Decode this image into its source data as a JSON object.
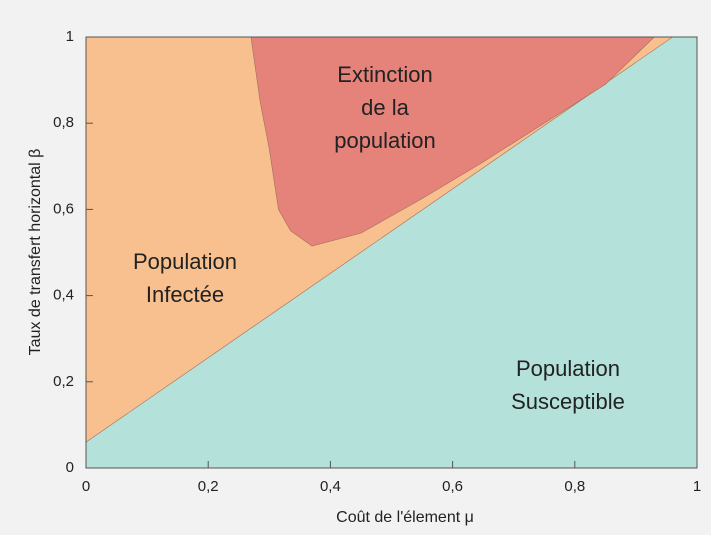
{
  "chart_data": {
    "type": "area",
    "xlabel": "Coût de l'élement μ",
    "ylabel": "Taux de transfert horizontal β",
    "xlim": [
      0,
      1
    ],
    "ylim": [
      0,
      1
    ],
    "xticks": [
      0,
      {
        "value": 0.2,
        "label": "0,2"
      },
      {
        "value": 0.4,
        "label": "0,4"
      },
      {
        "value": 0.6,
        "label": "0,6"
      },
      {
        "value": 0.8,
        "label": "0,8"
      },
      1
    ],
    "yticks": [
      0,
      {
        "value": 0.2,
        "label": "0,2"
      },
      {
        "value": 0.4,
        "label": "0,4"
      },
      {
        "value": 0.6,
        "label": "0,6"
      },
      {
        "value": 0.8,
        "label": "0,8"
      },
      1
    ],
    "background_color": "#f8c08f",
    "background_label": [
      "Population",
      "Infectée"
    ],
    "series": [
      {
        "label": [
          "Population",
          "Susceptible"
        ],
        "color": "#b4e1da",
        "fill_below": true,
        "x": [
          0,
          0.96
        ],
        "values": [
          0.06,
          1
        ]
      },
      {
        "label": [
          "Extinction",
          "de la",
          "population"
        ],
        "color": "#e5827a",
        "fill_below": false,
        "x": [
          0.27,
          0.285,
          0.3,
          0.315,
          0.335,
          0.37,
          0.45,
          0.55,
          0.65,
          0.75,
          0.85,
          0.93
        ],
        "values": [
          1,
          0.85,
          0.74,
          0.6,
          0.55,
          0.515,
          0.545,
          0.625,
          0.71,
          0.8,
          0.89,
          1
        ]
      }
    ]
  }
}
